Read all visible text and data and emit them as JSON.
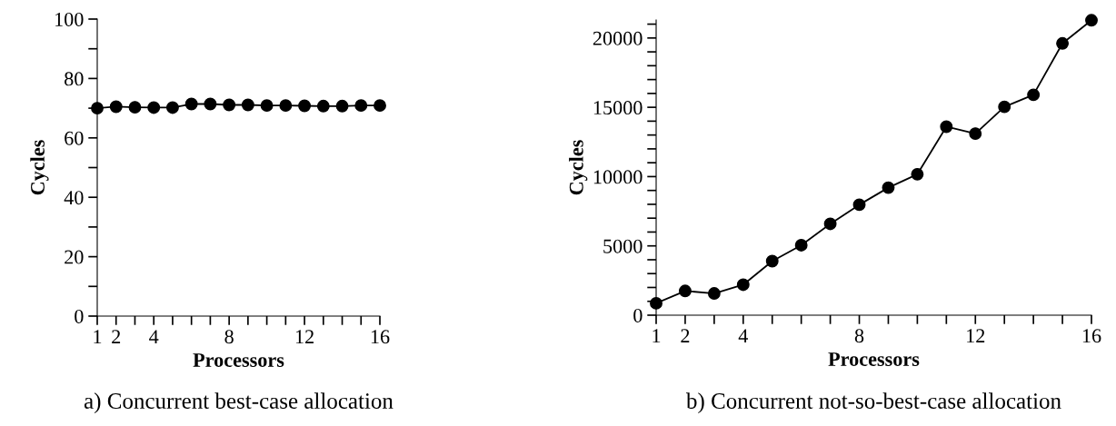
{
  "chart_data": [
    {
      "type": "line",
      "xlabel": "Processors",
      "ylabel": "Cycles",
      "x": [
        1,
        2,
        3,
        4,
        5,
        6,
        7,
        8,
        9,
        10,
        11,
        12,
        13,
        14,
        15,
        16
      ],
      "series": [
        {
          "color": "#000000",
          "values": [
            70,
            70.5,
            70.3,
            70.2,
            70.2,
            71.4,
            71.4,
            71.1,
            71.1,
            70.9,
            70.9,
            70.8,
            70.7,
            70.7,
            70.9,
            70.9
          ]
        }
      ],
      "xlim": [
        1,
        16
      ],
      "ylim": [
        0,
        100
      ],
      "xticks": [
        1,
        2,
        {
          "value": 3,
          "label": null
        },
        4,
        {
          "value": 5,
          "label": null
        },
        {
          "value": 6,
          "label": null
        },
        {
          "value": 7,
          "label": null
        },
        8,
        {
          "value": 9,
          "label": null
        },
        {
          "value": 10,
          "label": null
        },
        {
          "value": 11,
          "label": null
        },
        12,
        {
          "value": 13,
          "label": null
        },
        {
          "value": 14,
          "label": null
        },
        {
          "value": 15,
          "label": null
        },
        16
      ],
      "yticks": [
        0,
        {
          "value": 10,
          "label": null
        },
        20,
        {
          "value": 30,
          "label": null
        },
        40,
        {
          "value": 50,
          "label": null
        },
        60,
        {
          "value": 70,
          "label": null
        },
        80,
        {
          "value": 90,
          "label": null
        },
        100
      ],
      "marker": "circle",
      "line_style": "solid",
      "grid": false,
      "legend": false,
      "annotations": [
        "a) Concurrent best-case allocation"
      ]
    },
    {
      "type": "line",
      "xlabel": "Processors",
      "ylabel": "Cycles",
      "x": [
        1,
        2,
        3,
        4,
        5,
        6,
        7,
        8,
        9,
        10,
        11,
        12,
        13,
        14,
        15,
        16
      ],
      "series": [
        {
          "color": "#000000",
          "values": [
            860,
            1750,
            1570,
            2200,
            3900,
            5050,
            6590,
            7970,
            9200,
            10170,
            13600,
            13100,
            15030,
            15900,
            19610,
            21280
          ]
        }
      ],
      "xlim": [
        1,
        16
      ],
      "ylim": [
        0,
        21300
      ],
      "xticks": [
        1,
        2,
        {
          "value": 3,
          "label": null
        },
        4,
        {
          "value": 5,
          "label": null
        },
        {
          "value": 6,
          "label": null
        },
        {
          "value": 7,
          "label": null
        },
        8,
        {
          "value": 9,
          "label": null
        },
        {
          "value": 10,
          "label": null
        },
        {
          "value": 11,
          "label": null
        },
        12,
        {
          "value": 13,
          "label": null
        },
        {
          "value": 14,
          "label": null
        },
        {
          "value": 15,
          "label": null
        },
        16
      ],
      "yticks": [
        0,
        {
          "value": 1000,
          "label": null
        },
        {
          "value": 2000,
          "label": null
        },
        {
          "value": 3000,
          "label": null
        },
        {
          "value": 4000,
          "label": null
        },
        5000,
        {
          "value": 6000,
          "label": null
        },
        {
          "value": 7000,
          "label": null
        },
        {
          "value": 8000,
          "label": null
        },
        {
          "value": 9000,
          "label": null
        },
        10000,
        {
          "value": 11000,
          "label": null
        },
        {
          "value": 12000,
          "label": null
        },
        {
          "value": 13000,
          "label": null
        },
        {
          "value": 14000,
          "label": null
        },
        15000,
        {
          "value": 16000,
          "label": null
        },
        {
          "value": 17000,
          "label": null
        },
        {
          "value": 18000,
          "label": null
        },
        {
          "value": 19000,
          "label": null
        },
        20000,
        {
          "value": 21000,
          "label": null
        }
      ],
      "marker": "circle",
      "line_style": "solid",
      "grid": false,
      "legend": false,
      "annotations": [
        "b) Concurrent not-so-best-case allocation"
      ]
    }
  ]
}
